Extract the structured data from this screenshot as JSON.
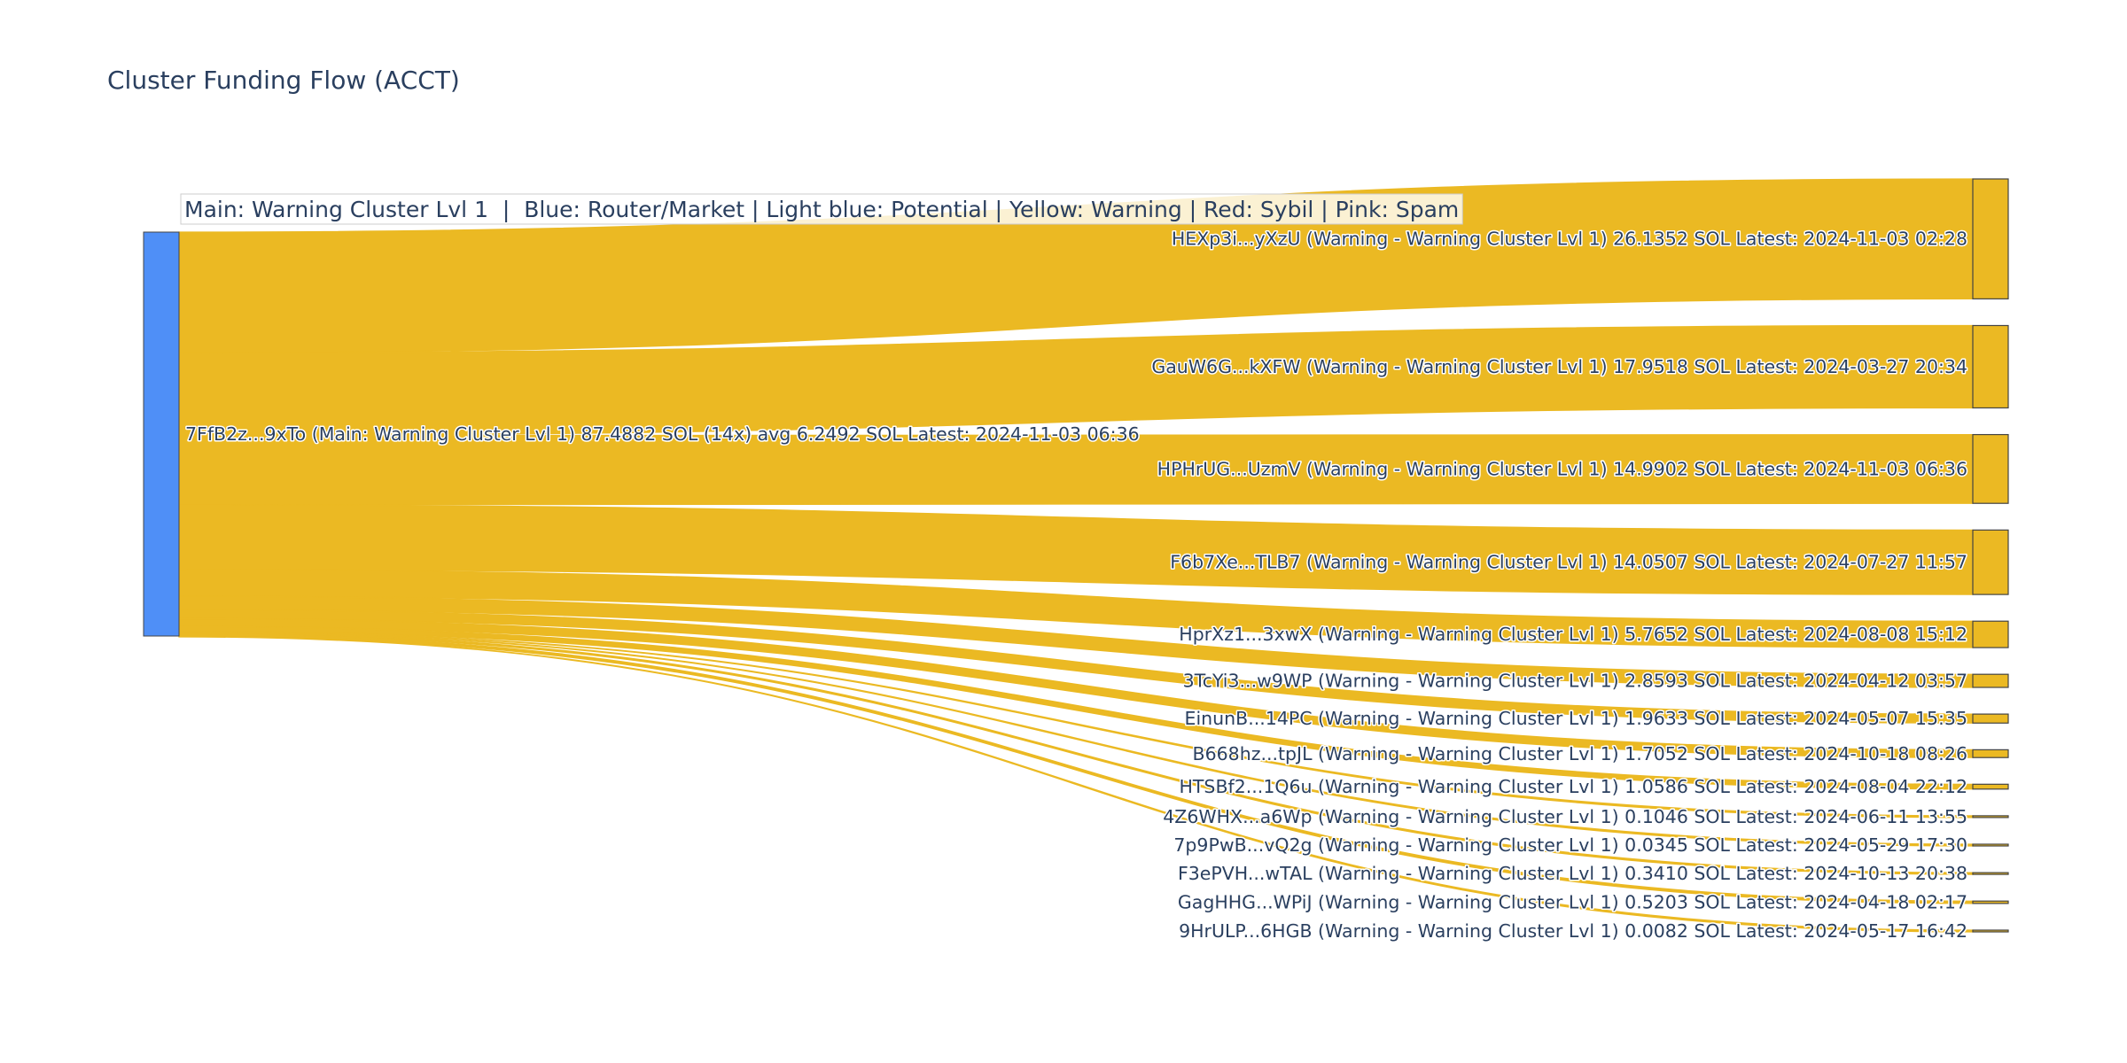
{
  "colors": {
    "source_node": "#4f8ff7",
    "target_node": "#ebb923",
    "link": "#ebb923",
    "node_border": "#444444",
    "legend_bg": "#ffffff"
  },
  "chart_data": {
    "type": "sankey",
    "title": "Cluster Funding Flow (ACCT)",
    "legend_text": "Main: Warning Cluster Lvl 1  |  Blue: Router/Market | Light blue: Potential | Yellow: Warning | Red: Sybil | Pink: Spam",
    "source": {
      "id": "7FfB2z...9xTo",
      "label": "7FfB2z...9xTo (Main: Warning Cluster Lvl 1) 87.4882 SOL (14x) avg 6.2492 SOL Latest: 2024-11-03 06:36",
      "value": 87.4882
    },
    "targets": [
      {
        "id": "HEXp3i...yXzU",
        "label": "HEXp3i...yXzU (Warning - Warning Cluster Lvl 1) 26.1352 SOL Latest: 2024-11-03 02:28",
        "value": 26.1352
      },
      {
        "id": "GauW6G...kXFW",
        "label": "GauW6G...kXFW (Warning - Warning Cluster Lvl 1) 17.9518 SOL Latest: 2024-03-27 20:34",
        "value": 17.9518
      },
      {
        "id": "HPHrUG...UzmV",
        "label": "HPHrUG...UzmV (Warning - Warning Cluster Lvl 1) 14.9902 SOL Latest: 2024-11-03 06:36",
        "value": 14.9902
      },
      {
        "id": "F6b7Xe...TLB7",
        "label": "F6b7Xe...TLB7 (Warning - Warning Cluster Lvl 1) 14.0507 SOL Latest: 2024-07-27 11:57",
        "value": 14.0507
      },
      {
        "id": "HprXz1...3xwX",
        "label": "HprXz1...3xwX (Warning - Warning Cluster Lvl 1) 5.7652 SOL Latest: 2024-08-08 15:12",
        "value": 5.7652
      },
      {
        "id": "3TcYi3...w9WP",
        "label": "3TcYi3...w9WP (Warning - Warning Cluster Lvl 1) 2.8593 SOL Latest: 2024-04-12 03:57",
        "value": 2.8593
      },
      {
        "id": "EinunB...14PC",
        "label": "EinunB...14PC (Warning - Warning Cluster Lvl 1) 1.9633 SOL Latest: 2024-05-07 15:35",
        "value": 1.9633
      },
      {
        "id": "B668hz...tpJL",
        "label": "B668hz...tpJL (Warning - Warning Cluster Lvl 1) 1.7052 SOL Latest: 2024-10-18 08:26",
        "value": 1.7052
      },
      {
        "id": "HTSBf2...1Q6u",
        "label": "HTSBf2...1Q6u (Warning - Warning Cluster Lvl 1) 1.0586 SOL Latest: 2024-08-04 22:12",
        "value": 1.0586
      },
      {
        "id": "4Z6WHX...a6Wp",
        "label": "4Z6WHX...a6Wp (Warning - Warning Cluster Lvl 1) 0.1046 SOL Latest: 2024-06-11 13:55",
        "value": 0.1046
      },
      {
        "id": "7p9PwB...vQ2g",
        "label": "7p9PwB...vQ2g (Warning - Warning Cluster Lvl 1) 0.0345 SOL Latest: 2024-05-29 17:30",
        "value": 0.0345
      },
      {
        "id": "F3ePVH...wTAL",
        "label": "F3ePVH...wTAL (Warning - Warning Cluster Lvl 1) 0.3410 SOL Latest: 2024-10-13 20:38",
        "value": 0.341
      },
      {
        "id": "GagHHG...WPiJ",
        "label": "GagHHG...WPiJ (Warning - Warning Cluster Lvl 1) 0.5203 SOL Latest: 2024-04-18 02:17",
        "value": 0.5203
      },
      {
        "id": "9HrULP...6HGB",
        "label": "9HrULP...6HGB (Warning - Warning Cluster Lvl 1) 0.0082 SOL Latest: 2024-05-17 16:42",
        "value": 0.0082
      }
    ]
  }
}
